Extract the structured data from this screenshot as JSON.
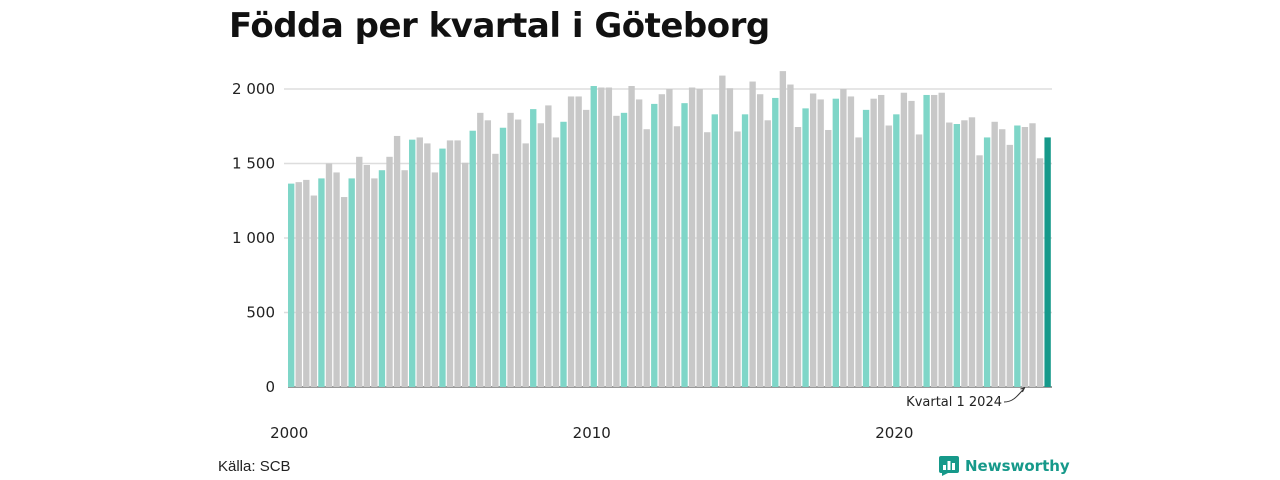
{
  "chart_data": {
    "type": "bar",
    "title": "Födda per kvartal i Göteborg",
    "xlabel": "",
    "ylabel": "",
    "ylim": [
      0,
      2200
    ],
    "y_ticks": [
      0,
      500,
      1000,
      1500,
      2000
    ],
    "y_tick_labels": [
      "0",
      "500",
      "1 000",
      "1 500",
      "2 000"
    ],
    "x_tick_labels": [
      "2000",
      "2010",
      "2020"
    ],
    "grid": "horizontal",
    "colors": {
      "q1": "#7fd6c8",
      "other": "#c8c8c8",
      "highlight": "#16998a",
      "grid": "#dddddd",
      "axis": "#333333"
    },
    "series": [
      {
        "values": [
          1365,
          1375,
          1390,
          1285,
          1400,
          1500,
          1440,
          1275,
          1400,
          1545,
          1490,
          1400,
          1455,
          1545,
          1685,
          1455,
          1660,
          1675,
          1635,
          1440,
          1600,
          1655,
          1655,
          1505,
          1720,
          1840,
          1790,
          1565,
          1740,
          1840,
          1795,
          1635,
          1865,
          1770,
          1890,
          1675,
          1780,
          1950,
          1950,
          1860,
          2020,
          2010,
          2010,
          1820,
          1840,
          2020,
          1930,
          1730,
          1900,
          1965,
          2000,
          1750,
          1905,
          2010,
          2000,
          1710,
          1830,
          2090,
          2005,
          1715,
          1830,
          2050,
          1965,
          1790,
          1940,
          2120,
          2030,
          1745,
          1870,
          1970,
          1930,
          1725,
          1935,
          2000,
          1950,
          1675,
          1860,
          1935,
          1960,
          1755,
          1830,
          1975,
          1920,
          1695,
          1960,
          1960,
          1975,
          1775,
          1765,
          1790,
          1810,
          1555,
          1675,
          1780,
          1730,
          1625,
          1755,
          1745,
          1770,
          1535,
          1675
        ]
      }
    ],
    "annotations": [
      {
        "text": "Kvartal 1 2024",
        "target": "last"
      }
    ]
  },
  "source": "Källa: SCB",
  "brand": "Newsworthy"
}
